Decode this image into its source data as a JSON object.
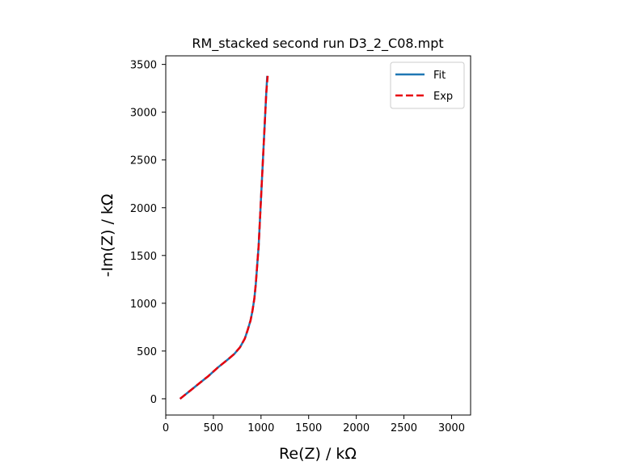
{
  "chart_data": {
    "type": "line",
    "title": "RM_stacked second run D3_2_C08.mpt",
    "xlabel": "Re(Z) / kΩ",
    "ylabel": "-Im(Z) / kΩ",
    "xlim": [
      0,
      3200
    ],
    "ylim": [
      -170,
      3590
    ],
    "xticks": [
      0,
      500,
      1000,
      1500,
      2000,
      2500,
      3000
    ],
    "yticks": [
      0,
      500,
      1000,
      1500,
      2000,
      2500,
      3000,
      3500
    ],
    "grid": false,
    "legend_position": "top-right",
    "series": [
      {
        "name": "Fit",
        "color": "#1f77b4",
        "line_style": "solid",
        "x": [
          150,
          250,
          350,
          450,
          550,
          650,
          720,
          780,
          830,
          860,
          890,
          910,
          930,
          945,
          960,
          975,
          985,
          995,
          1005,
          1015,
          1025,
          1035,
          1045,
          1055,
          1065
        ],
        "y": [
          0,
          80,
          160,
          240,
          330,
          410,
          470,
          540,
          630,
          720,
          820,
          920,
          1050,
          1200,
          1400,
          1600,
          1800,
          2000,
          2200,
          2400,
          2600,
          2800,
          3000,
          3200,
          3380
        ]
      },
      {
        "name": "Exp",
        "color": "#e8000b",
        "line_style": "dashed",
        "x": [
          150,
          250,
          350,
          450,
          550,
          650,
          720,
          780,
          830,
          860,
          890,
          910,
          930,
          945,
          960,
          975,
          985,
          995,
          1005,
          1015,
          1025,
          1035,
          1045,
          1055,
          1070
        ],
        "y": [
          0,
          80,
          160,
          240,
          330,
          410,
          470,
          540,
          630,
          720,
          820,
          920,
          1050,
          1200,
          1400,
          1600,
          1800,
          2000,
          2200,
          2400,
          2600,
          2800,
          3000,
          3200,
          3380
        ]
      }
    ]
  }
}
